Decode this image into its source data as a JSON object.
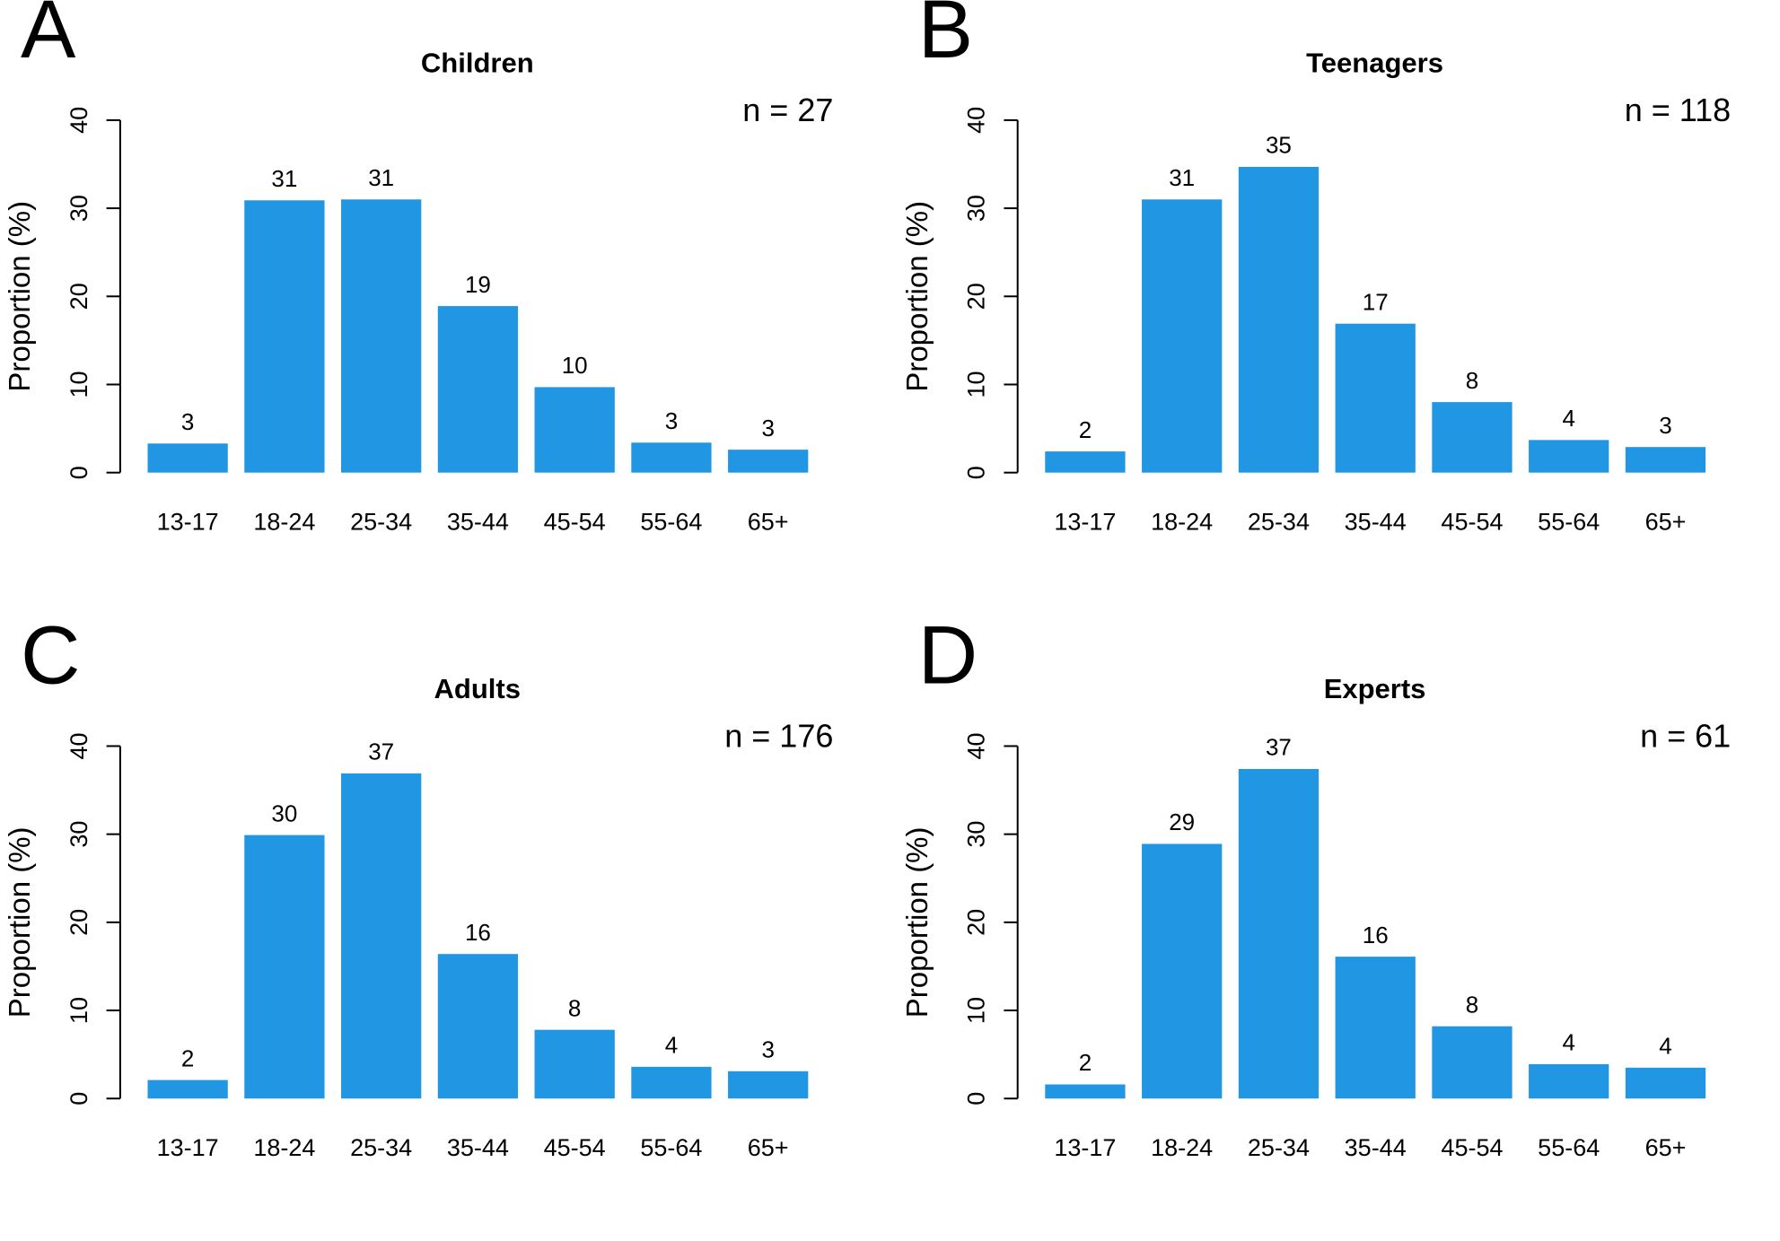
{
  "colors": {
    "bar": "#2196e3",
    "axis": "#000000",
    "background": "#ffffff"
  },
  "chart_data": [
    {
      "type": "bar",
      "panel": "A",
      "title": "Children",
      "annotation": "n = 27",
      "xlabel": "",
      "ylabel": "Proportion (%)",
      "ylim": [
        0,
        40
      ],
      "yticks": [
        0,
        10,
        20,
        30,
        40
      ],
      "categories": [
        "13-17",
        "18-24",
        "25-34",
        "35-44",
        "45-54",
        "55-64",
        "65+"
      ],
      "values": [
        3.3,
        30.9,
        31.0,
        18.9,
        9.7,
        3.4,
        2.6
      ],
      "data_labels": [
        "3",
        "31",
        "31",
        "19",
        "10",
        "3",
        "3"
      ]
    },
    {
      "type": "bar",
      "panel": "B",
      "title": "Teenagers",
      "annotation": "n = 118",
      "xlabel": "",
      "ylabel": "Proportion (%)",
      "ylim": [
        0,
        40
      ],
      "yticks": [
        0,
        10,
        20,
        30,
        40
      ],
      "categories": [
        "13-17",
        "18-24",
        "25-34",
        "35-44",
        "45-54",
        "55-64",
        "65+"
      ],
      "values": [
        2.4,
        31.0,
        34.7,
        16.9,
        8.0,
        3.7,
        2.9
      ],
      "data_labels": [
        "2",
        "31",
        "35",
        "17",
        "8",
        "4",
        "3"
      ]
    },
    {
      "type": "bar",
      "panel": "C",
      "title": "Adults",
      "annotation": "n = 176",
      "xlabel": "",
      "ylabel": "Proportion (%)",
      "ylim": [
        0,
        40
      ],
      "yticks": [
        0,
        10,
        20,
        30,
        40
      ],
      "categories": [
        "13-17",
        "18-24",
        "25-34",
        "35-44",
        "45-54",
        "55-64",
        "65+"
      ],
      "values": [
        2.1,
        29.9,
        36.9,
        16.4,
        7.8,
        3.6,
        3.1
      ],
      "data_labels": [
        "2",
        "30",
        "37",
        "16",
        "8",
        "4",
        "3"
      ]
    },
    {
      "type": "bar",
      "panel": "D",
      "title": "Experts",
      "annotation": "n = 61",
      "xlabel": "",
      "ylabel": "Proportion (%)",
      "ylim": [
        0,
        40
      ],
      "yticks": [
        0,
        10,
        20,
        30,
        40
      ],
      "categories": [
        "13-17",
        "18-24",
        "25-34",
        "35-44",
        "45-54",
        "55-64",
        "65+"
      ],
      "values": [
        1.6,
        28.9,
        37.4,
        16.1,
        8.2,
        3.9,
        3.5
      ],
      "data_labels": [
        "2",
        "29",
        "37",
        "16",
        "8",
        "4",
        "4"
      ]
    }
  ]
}
